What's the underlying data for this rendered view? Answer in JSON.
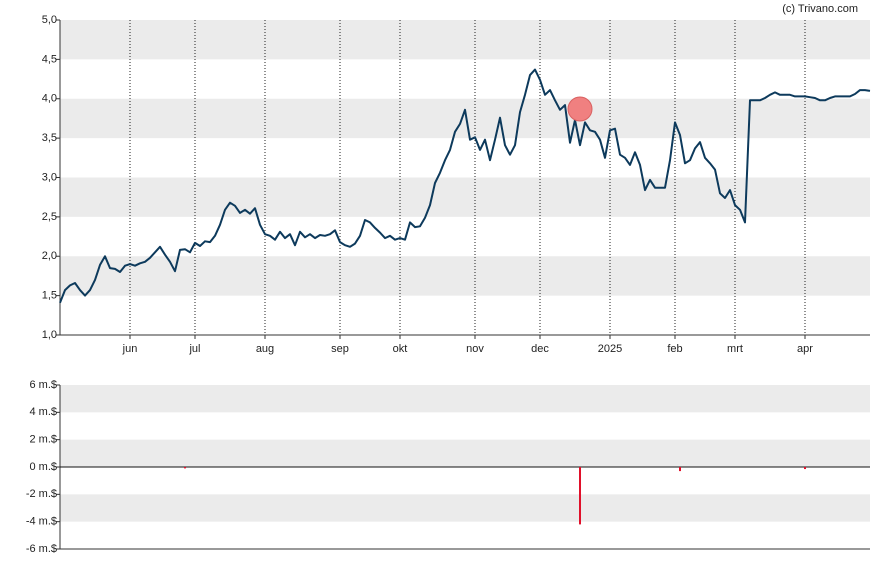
{
  "chart_data": [
    {
      "type": "line",
      "credit": "(c) Trivano.com",
      "categories": [
        null,
        null,
        null,
        null,
        null,
        null,
        null,
        null,
        null,
        null,
        null,
        null,
        null,
        null,
        "jun",
        null,
        null,
        null,
        null,
        null,
        null,
        null,
        null,
        null,
        null,
        null,
        null,
        "jul",
        null,
        null,
        null,
        null,
        null,
        null,
        null,
        null,
        null,
        null,
        null,
        null,
        null,
        "aug",
        null,
        null,
        null,
        null,
        null,
        null,
        null,
        null,
        null,
        null,
        null,
        null,
        null,
        null,
        "sep",
        null,
        null,
        null,
        null,
        null,
        null,
        null,
        null,
        null,
        null,
        null,
        "okt",
        null,
        null,
        null,
        null,
        null,
        null,
        null,
        null,
        null,
        null,
        null,
        null,
        null,
        null,
        "nov",
        null,
        null,
        null,
        null,
        null,
        null,
        null,
        null,
        null,
        null,
        null,
        null,
        "dec",
        null,
        null,
        null,
        null,
        null,
        null,
        null,
        null,
        null,
        null,
        null,
        null,
        null,
        "2025",
        null,
        null,
        null,
        null,
        null,
        null,
        null,
        null,
        null,
        null,
        null,
        null,
        "feb",
        null,
        null,
        null,
        null,
        null,
        null,
        null,
        null,
        null,
        null,
        null,
        "mrt",
        null,
        null,
        null,
        null,
        null,
        null,
        null,
        null,
        null,
        null,
        null,
        null,
        null,
        "apr",
        null,
        null,
        null,
        null,
        null,
        null,
        null,
        null,
        null,
        null,
        null,
        null,
        null
      ],
      "values": [
        1.41,
        1.57,
        1.63,
        1.66,
        1.57,
        1.5,
        1.57,
        1.7,
        1.89,
        2.0,
        1.85,
        1.84,
        1.8,
        1.88,
        1.9,
        1.88,
        1.91,
        1.93,
        1.98,
        2.05,
        2.12,
        2.02,
        1.93,
        1.81,
        2.08,
        2.09,
        2.05,
        2.17,
        2.13,
        2.19,
        2.18,
        2.26,
        2.4,
        2.59,
        2.68,
        2.64,
        2.55,
        2.59,
        2.54,
        2.61,
        2.4,
        2.28,
        2.26,
        2.21,
        2.31,
        2.23,
        2.28,
        2.14,
        2.31,
        2.24,
        2.28,
        2.23,
        2.27,
        2.26,
        2.28,
        2.33,
        2.18,
        2.14,
        2.12,
        2.16,
        2.26,
        2.46,
        2.43,
        2.36,
        2.3,
        2.23,
        2.26,
        2.21,
        2.23,
        2.21,
        2.43,
        2.37,
        2.38,
        2.49,
        2.65,
        2.93,
        3.06,
        3.22,
        3.35,
        3.58,
        3.68,
        3.86,
        3.48,
        3.51,
        3.35,
        3.48,
        3.22,
        3.48,
        3.76,
        3.41,
        3.29,
        3.41,
        3.83,
        4.05,
        4.3,
        4.37,
        4.24,
        4.05,
        4.11,
        3.98,
        3.86,
        3.92,
        3.44,
        3.73,
        3.41,
        3.7,
        3.6,
        3.58,
        3.48,
        3.25,
        3.6,
        3.62,
        3.29,
        3.25,
        3.16,
        3.32,
        3.16,
        2.84,
        2.97,
        2.87,
        2.87,
        2.87,
        3.22,
        3.7,
        3.54,
        3.18,
        3.22,
        3.37,
        3.45,
        3.25,
        3.18,
        3.1,
        2.8,
        2.74,
        2.84,
        2.65,
        2.59,
        2.43,
        3.98,
        3.98,
        3.98,
        4.01,
        4.05,
        4.08,
        4.05,
        4.05,
        4.05,
        4.03,
        4.03,
        4.03,
        4.02,
        4.01,
        3.98,
        3.98,
        4.01,
        4.03,
        4.03,
        4.03,
        4.03,
        4.06,
        4.11,
        4.11,
        4.1
      ],
      "color": "#0d3a5c",
      "marker": {
        "category_index": 104,
        "value": 3.87,
        "color": "#f08080"
      },
      "ylim": [
        1,
        5
      ],
      "yticks": [
        {
          "value": 1,
          "label": "1,0"
        },
        {
          "value": 1.5,
          "label": "1,5"
        },
        {
          "value": 2,
          "label": "2,0"
        },
        {
          "value": 2.5,
          "label": "2,5"
        },
        {
          "value": 3,
          "label": "3,0"
        },
        {
          "value": 3.5,
          "label": "3,5"
        },
        {
          "value": 4,
          "label": "4,0"
        },
        {
          "value": 4.5,
          "label": "4,5"
        },
        {
          "value": 5,
          "label": "5,0"
        }
      ],
      "grid": true
    },
    {
      "type": "bar",
      "values": [
        null,
        null,
        null,
        null,
        null,
        null,
        null,
        null,
        null,
        null,
        null,
        null,
        null,
        null,
        null,
        null,
        null,
        null,
        null,
        null,
        null,
        null,
        null,
        null,
        null,
        -0.1,
        null,
        null,
        null,
        null,
        null,
        null,
        null,
        null,
        null,
        null,
        null,
        null,
        null,
        null,
        null,
        null,
        null,
        null,
        null,
        null,
        null,
        null,
        null,
        null,
        null,
        null,
        null,
        null,
        null,
        null,
        null,
        null,
        null,
        null,
        null,
        null,
        null,
        null,
        null,
        null,
        null,
        null,
        null,
        null,
        null,
        null,
        null,
        null,
        null,
        null,
        null,
        null,
        null,
        null,
        null,
        null,
        null,
        null,
        null,
        null,
        null,
        null,
        null,
        null,
        null,
        null,
        null,
        null,
        null,
        null,
        null,
        null,
        null,
        null,
        null,
        null,
        null,
        null,
        -4.2,
        null,
        null,
        null,
        null,
        null,
        null,
        null,
        null,
        null,
        null,
        null,
        null,
        null,
        null,
        null,
        null,
        null,
        null,
        null,
        -0.3,
        null,
        null,
        null,
        null,
        null,
        null,
        null,
        null,
        null,
        null,
        null,
        null,
        null,
        null,
        null,
        null,
        null,
        null,
        null,
        null,
        null,
        null,
        null,
        null,
        -0.15,
        null,
        null,
        null,
        null,
        null,
        null,
        null,
        null,
        null,
        null,
        null,
        null,
        null
      ],
      "color": "#e0102a",
      "ylim": [
        -6,
        6
      ],
      "yticks": [
        {
          "value": -6,
          "label": "-6 m.$"
        },
        {
          "value": -4,
          "label": "-4 m.$"
        },
        {
          "value": -2,
          "label": "-2 m.$"
        },
        {
          "value": 0,
          "label": "0 m.$"
        },
        {
          "value": 2,
          "label": "2 m.$"
        },
        {
          "value": 4,
          "label": "4 m.$"
        },
        {
          "value": 6,
          "label": "6 m.$"
        }
      ],
      "grid": true
    }
  ]
}
